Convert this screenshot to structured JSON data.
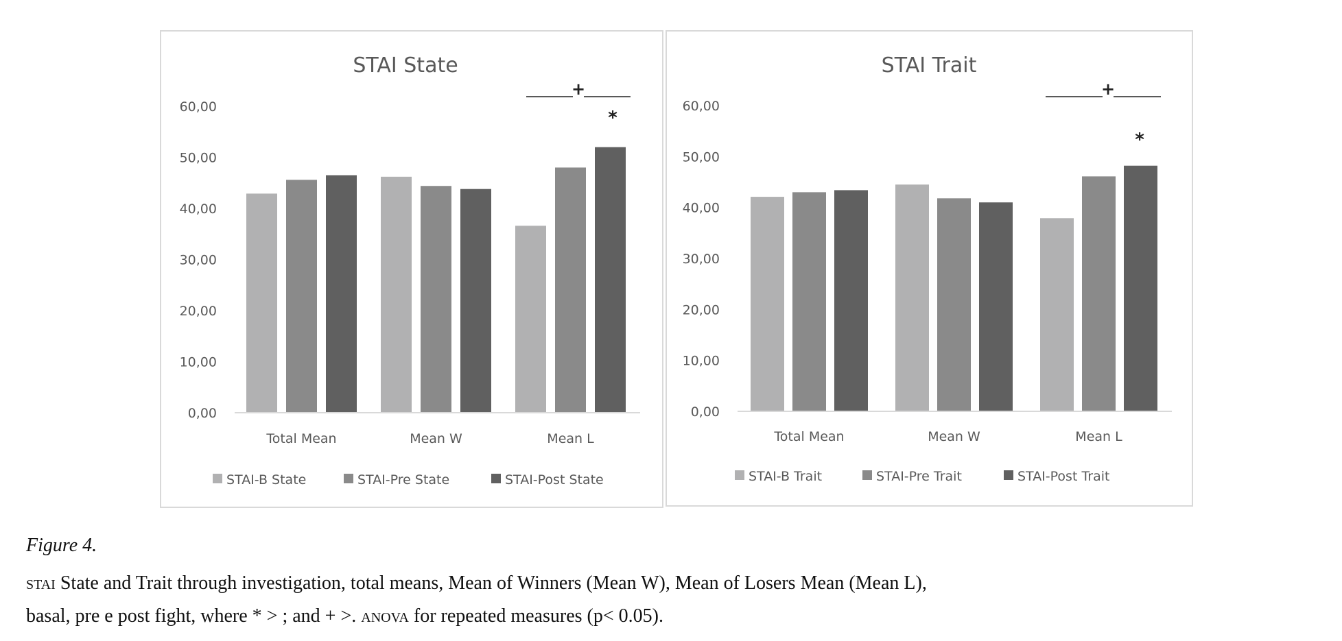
{
  "chart_data": [
    {
      "type": "bar",
      "title": "STAI  State",
      "categories": [
        "Total Mean",
        "Mean W",
        "Mean L"
      ],
      "series": [
        {
          "name": "STAI-B State",
          "values": [
            42.9,
            46.2,
            36.6
          ],
          "color": "#b1b1b2"
        },
        {
          "name": "STAI-Pre State",
          "values": [
            45.6,
            44.4,
            48.0
          ],
          "color": "#8a8a8a"
        },
        {
          "name": "STAI-Post State",
          "values": [
            46.5,
            43.8,
            52.0
          ],
          "color": "#606060"
        }
      ],
      "yticks": [
        "0,00",
        "10,00",
        "20,00",
        "30,00",
        "40,00",
        "50,00",
        "60,00"
      ],
      "ylim": [
        0,
        60
      ],
      "grid": false,
      "legend": "bottom",
      "annotations": {
        "bracket": "+",
        "star": "*"
      }
    },
    {
      "type": "bar",
      "title": "STAI  Trait",
      "categories": [
        "Total Mean",
        "Mean W",
        "Mean L"
      ],
      "series": [
        {
          "name": "STAI-B Trait",
          "values": [
            42.1,
            44.5,
            37.9
          ],
          "color": "#b1b1b2"
        },
        {
          "name": "STAI-Pre Trait",
          "values": [
            43.0,
            41.8,
            46.1
          ],
          "color": "#8a8a8a"
        },
        {
          "name": "STAI-Post Trait",
          "values": [
            43.4,
            41.0,
            48.2
          ],
          "color": "#606060"
        }
      ],
      "yticks": [
        "0,00",
        "10,00",
        "20,00",
        "30,00",
        "40,00",
        "50,00",
        "60,00"
      ],
      "ylim": [
        0,
        60
      ],
      "grid": false,
      "legend": "bottom",
      "annotations": {
        "bracket": "+",
        "star": "*"
      }
    }
  ],
  "caption": {
    "label": "Figure 4.",
    "line1_sc": "STAI",
    "line1": " State and Trait through investigation, total means, Mean of Winners (Mean W), Mean of Losers Mean (Mean L),",
    "line2_a": "basal, pre e post fight, where * > ; and + >. ",
    "line2_sc": "ANOVA",
    "line2_b": " for repeated measures (p< 0.05)."
  }
}
